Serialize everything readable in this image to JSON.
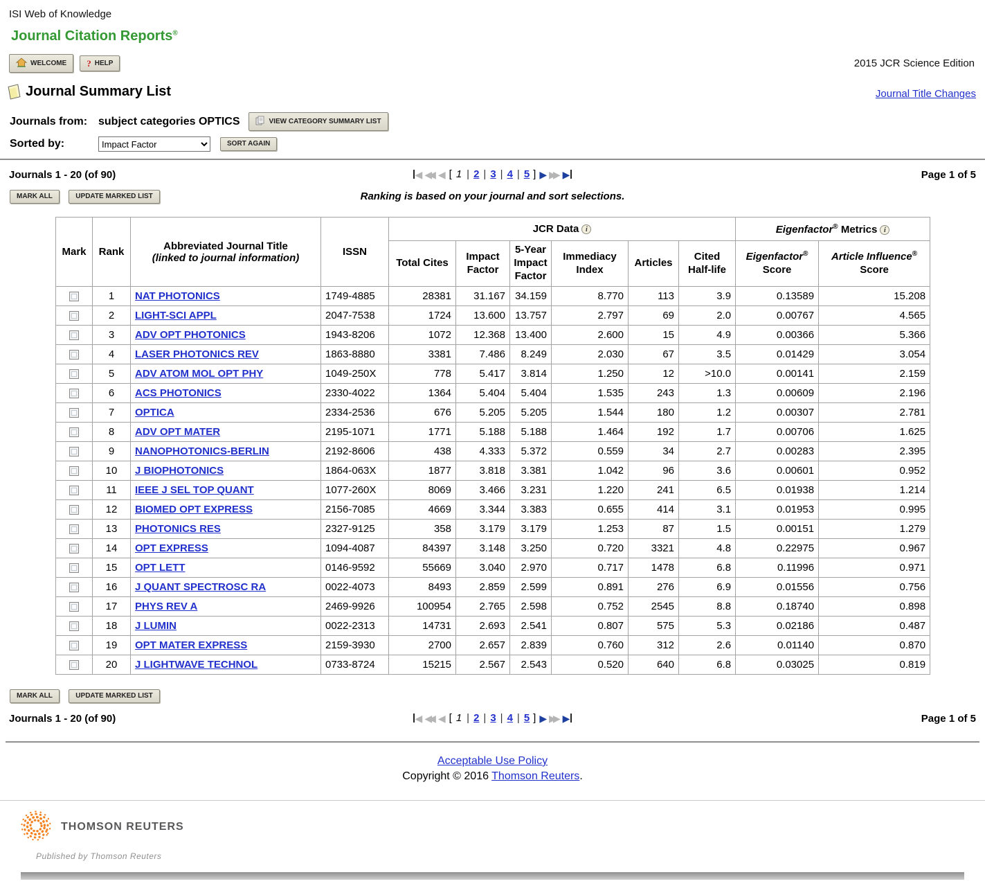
{
  "colors": {
    "brand_green": "#339933",
    "link_blue": "#2230cc",
    "pager_active_blue": "#1c3fa0",
    "logo_orange": "#f58220"
  },
  "header": {
    "site_name": "ISI Web of Knowledge",
    "app_title": "Journal Citation Reports",
    "registered_mark": "®",
    "welcome_button": "WELCOME",
    "help_button": "HELP",
    "edition": "2015 JCR Science Edition",
    "title_changes_link": "Journal Title Changes"
  },
  "page": {
    "title": "Journal Summary List"
  },
  "filters": {
    "from_label": "Journals from:",
    "from_value": "subject categories OPTICS",
    "view_category_button": "VIEW CATEGORY SUMMARY LIST",
    "sorted_by_label": "Sorted by:",
    "sort_selected": "Impact Factor",
    "sort_again_button": "SORT AGAIN"
  },
  "listbar": {
    "range_text": "Journals 1 - 20 (of 90)",
    "page_text": "Page 1 of 5",
    "mark_all_button": "MARK ALL",
    "update_marked_button": "UPDATE MARKED LIST",
    "ranking_note": "Ranking is based on your journal and sort selections.",
    "pagination": {
      "current_page": "1",
      "pages": [
        "1",
        "2",
        "3",
        "4",
        "5"
      ]
    }
  },
  "icons": {
    "first_page": "◀",
    "prev_10": "◀◀",
    "prev": "◀",
    "next": "▶",
    "next_10": "▶▶",
    "last_page": "▶",
    "info": "i",
    "help": "?"
  },
  "table": {
    "group_headers": {
      "jcr": "JCR Data",
      "eigenfactor_italic": "Eigenfactor",
      "eigenfactor_reg": "®",
      "eigenfactor_rest": " Metrics"
    },
    "columns": {
      "mark": "Mark",
      "rank": "Rank",
      "title_line1": "Abbreviated Journal Title",
      "title_line2": "(linked to journal information)",
      "issn": "ISSN",
      "total_cites": "Total Cites",
      "impact_factor": "Impact Factor",
      "five_year_impact_factor": "5-Year Impact Factor",
      "immediacy_index": "Immediacy Index",
      "articles": "Articles",
      "cited_half_life": "Cited Half-life",
      "eigenfactor_score_italic": "Eigenfactor",
      "eigenfactor_score_reg": "®",
      "eigenfactor_score_rest": "Score",
      "article_influence_italic": "Article Influence",
      "article_influence_reg": "®",
      "article_influence_rest": "Score"
    },
    "rows": [
      {
        "rank": "1",
        "title": "NAT PHOTONICS",
        "issn": "1749-4885",
        "total_cites": "28381",
        "impact_factor": "31.167",
        "five_year_impact_factor": "34.159",
        "immediacy_index": "8.770",
        "articles": "113",
        "cited_half_life": "3.9",
        "eigenfactor_score": "0.13589",
        "article_influence_score": "15.208"
      },
      {
        "rank": "2",
        "title": "LIGHT-SCI APPL",
        "issn": "2047-7538",
        "total_cites": "1724",
        "impact_factor": "13.600",
        "five_year_impact_factor": "13.757",
        "immediacy_index": "2.797",
        "articles": "69",
        "cited_half_life": "2.0",
        "eigenfactor_score": "0.00767",
        "article_influence_score": "4.565"
      },
      {
        "rank": "3",
        "title": "ADV OPT PHOTONICS",
        "issn": "1943-8206",
        "total_cites": "1072",
        "impact_factor": "12.368",
        "five_year_impact_factor": "13.400",
        "immediacy_index": "2.600",
        "articles": "15",
        "cited_half_life": "4.9",
        "eigenfactor_score": "0.00366",
        "article_influence_score": "5.366"
      },
      {
        "rank": "4",
        "title": "LASER PHOTONICS REV",
        "issn": "1863-8880",
        "total_cites": "3381",
        "impact_factor": "7.486",
        "five_year_impact_factor": "8.249",
        "immediacy_index": "2.030",
        "articles": "67",
        "cited_half_life": "3.5",
        "eigenfactor_score": "0.01429",
        "article_influence_score": "3.054"
      },
      {
        "rank": "5",
        "title": "ADV ATOM MOL OPT PHY",
        "issn": "1049-250X",
        "total_cites": "778",
        "impact_factor": "5.417",
        "five_year_impact_factor": "3.814",
        "immediacy_index": "1.250",
        "articles": "12",
        "cited_half_life": ">10.0",
        "eigenfactor_score": "0.00141",
        "article_influence_score": "2.159"
      },
      {
        "rank": "6",
        "title": "ACS PHOTONICS",
        "issn": "2330-4022",
        "total_cites": "1364",
        "impact_factor": "5.404",
        "five_year_impact_factor": "5.404",
        "immediacy_index": "1.535",
        "articles": "243",
        "cited_half_life": "1.3",
        "eigenfactor_score": "0.00609",
        "article_influence_score": "2.196"
      },
      {
        "rank": "7",
        "title": "OPTICA",
        "issn": "2334-2536",
        "total_cites": "676",
        "impact_factor": "5.205",
        "five_year_impact_factor": "5.205",
        "immediacy_index": "1.544",
        "articles": "180",
        "cited_half_life": "1.2",
        "eigenfactor_score": "0.00307",
        "article_influence_score": "2.781"
      },
      {
        "rank": "8",
        "title": "ADV OPT MATER",
        "issn": "2195-1071",
        "total_cites": "1771",
        "impact_factor": "5.188",
        "five_year_impact_factor": "5.188",
        "immediacy_index": "1.464",
        "articles": "192",
        "cited_half_life": "1.7",
        "eigenfactor_score": "0.00706",
        "article_influence_score": "1.625"
      },
      {
        "rank": "9",
        "title": "NANOPHOTONICS-BERLIN",
        "issn": "2192-8606",
        "total_cites": "438",
        "impact_factor": "4.333",
        "five_year_impact_factor": "5.372",
        "immediacy_index": "0.559",
        "articles": "34",
        "cited_half_life": "2.7",
        "eigenfactor_score": "0.00283",
        "article_influence_score": "2.395"
      },
      {
        "rank": "10",
        "title": "J BIOPHOTONICS",
        "issn": "1864-063X",
        "total_cites": "1877",
        "impact_factor": "3.818",
        "five_year_impact_factor": "3.381",
        "immediacy_index": "1.042",
        "articles": "96",
        "cited_half_life": "3.6",
        "eigenfactor_score": "0.00601",
        "article_influence_score": "0.952"
      },
      {
        "rank": "11",
        "title": "IEEE J SEL TOP QUANT",
        "issn": "1077-260X",
        "total_cites": "8069",
        "impact_factor": "3.466",
        "five_year_impact_factor": "3.231",
        "immediacy_index": "1.220",
        "articles": "241",
        "cited_half_life": "6.5",
        "eigenfactor_score": "0.01938",
        "article_influence_score": "1.214"
      },
      {
        "rank": "12",
        "title": "BIOMED OPT EXPRESS",
        "issn": "2156-7085",
        "total_cites": "4669",
        "impact_factor": "3.344",
        "five_year_impact_factor": "3.383",
        "immediacy_index": "0.655",
        "articles": "414",
        "cited_half_life": "3.1",
        "eigenfactor_score": "0.01953",
        "article_influence_score": "0.995"
      },
      {
        "rank": "13",
        "title": "PHOTONICS RES",
        "issn": "2327-9125",
        "total_cites": "358",
        "impact_factor": "3.179",
        "five_year_impact_factor": "3.179",
        "immediacy_index": "1.253",
        "articles": "87",
        "cited_half_life": "1.5",
        "eigenfactor_score": "0.00151",
        "article_influence_score": "1.279"
      },
      {
        "rank": "14",
        "title": "OPT EXPRESS",
        "issn": "1094-4087",
        "total_cites": "84397",
        "impact_factor": "3.148",
        "five_year_impact_factor": "3.250",
        "immediacy_index": "0.720",
        "articles": "3321",
        "cited_half_life": "4.8",
        "eigenfactor_score": "0.22975",
        "article_influence_score": "0.967"
      },
      {
        "rank": "15",
        "title": "OPT LETT",
        "issn": "0146-9592",
        "total_cites": "55669",
        "impact_factor": "3.040",
        "five_year_impact_factor": "2.970",
        "immediacy_index": "0.717",
        "articles": "1478",
        "cited_half_life": "6.8",
        "eigenfactor_score": "0.11996",
        "article_influence_score": "0.971"
      },
      {
        "rank": "16",
        "title": "J QUANT SPECTROSC RA",
        "issn": "0022-4073",
        "total_cites": "8493",
        "impact_factor": "2.859",
        "five_year_impact_factor": "2.599",
        "immediacy_index": "0.891",
        "articles": "276",
        "cited_half_life": "6.9",
        "eigenfactor_score": "0.01556",
        "article_influence_score": "0.756"
      },
      {
        "rank": "17",
        "title": "PHYS REV A",
        "issn": "2469-9926",
        "total_cites": "100954",
        "impact_factor": "2.765",
        "five_year_impact_factor": "2.598",
        "immediacy_index": "0.752",
        "articles": "2545",
        "cited_half_life": "8.8",
        "eigenfactor_score": "0.18740",
        "article_influence_score": "0.898"
      },
      {
        "rank": "18",
        "title": "J LUMIN",
        "issn": "0022-2313",
        "total_cites": "14731",
        "impact_factor": "2.693",
        "five_year_impact_factor": "2.541",
        "immediacy_index": "0.807",
        "articles": "575",
        "cited_half_life": "5.3",
        "eigenfactor_score": "0.02186",
        "article_influence_score": "0.487"
      },
      {
        "rank": "19",
        "title": "OPT MATER EXPRESS",
        "issn": "2159-3930",
        "total_cites": "2700",
        "impact_factor": "2.657",
        "five_year_impact_factor": "2.839",
        "immediacy_index": "0.760",
        "articles": "312",
        "cited_half_life": "2.6",
        "eigenfactor_score": "0.01140",
        "article_influence_score": "0.870"
      },
      {
        "rank": "20",
        "title": "J LIGHTWAVE TECHNOL",
        "issn": "0733-8724",
        "total_cites": "15215",
        "impact_factor": "2.567",
        "five_year_impact_factor": "2.543",
        "immediacy_index": "0.520",
        "articles": "640",
        "cited_half_life": "6.8",
        "eigenfactor_score": "0.03025",
        "article_influence_score": "0.819"
      }
    ]
  },
  "footer": {
    "acceptable_use_link": "Acceptable Use Policy",
    "copyright_prefix": "Copyright © 2016 ",
    "copyright_link": "Thomson Reuters",
    "copyright_suffix": ".",
    "logo_text": "THOMSON REUTERS",
    "published_by": "Published by Thomson Reuters"
  }
}
